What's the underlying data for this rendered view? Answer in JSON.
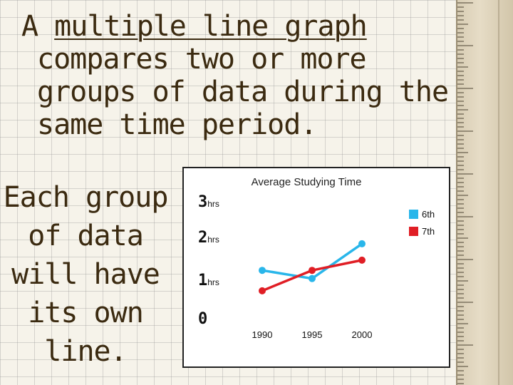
{
  "slide": {
    "heading_prefix": "A ",
    "heading_term": "multiple line graph",
    "heading_rest": "compares two or more groups of data during the same time period.",
    "side_text": "Each group of data will have its own line."
  },
  "chart_data": {
    "type": "line",
    "title": "Average Studying Time",
    "xlabel": "",
    "ylabel": "",
    "x": [
      "1990",
      "1995",
      "2000"
    ],
    "x_positions": [
      1988,
      1995,
      2002
    ],
    "y_ticks": [
      {
        "value": 0,
        "num": "0",
        "unit": ""
      },
      {
        "value": 1,
        "num": "1",
        "unit": "hrs"
      },
      {
        "value": 2,
        "num": "2",
        "unit": "hrs"
      },
      {
        "value": 3,
        "num": "3",
        "unit": "hrs"
      }
    ],
    "ylim": [
      0,
      3
    ],
    "grid": false,
    "legend": "top-right",
    "series": [
      {
        "name": "6th",
        "color": "#29b6ea",
        "points": [
          [
            1988,
            1.2
          ],
          [
            1995,
            1.0
          ],
          [
            2002,
            1.85
          ]
        ]
      },
      {
        "name": "7th",
        "color": "#e01e25",
        "points": [
          [
            1988,
            0.7
          ],
          [
            1995,
            1.2
          ],
          [
            2002,
            1.45
          ]
        ]
      }
    ]
  }
}
